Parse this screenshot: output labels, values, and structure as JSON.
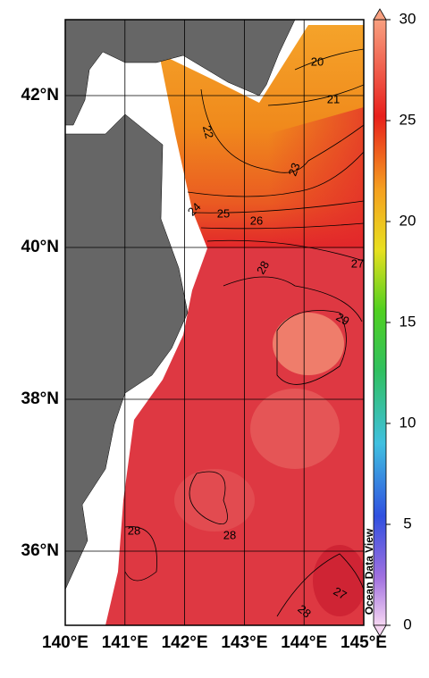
{
  "map": {
    "lon_ticks": [
      "140°E",
      "141°E",
      "142°E",
      "143°E",
      "144°E",
      "145°E"
    ],
    "lat_ticks": [
      "36°N",
      "38°N",
      "40°N",
      "42°N"
    ],
    "contour_labels": [
      "20",
      "21",
      "22",
      "23",
      "24",
      "25",
      "26",
      "27",
      "28",
      "29",
      "28",
      "28",
      "27",
      "28"
    ]
  },
  "colorbar": {
    "range": [
      0,
      30
    ],
    "ticks": [
      0,
      5,
      10,
      15,
      20,
      25,
      30
    ]
  },
  "watermark": "Ocean Data View"
}
